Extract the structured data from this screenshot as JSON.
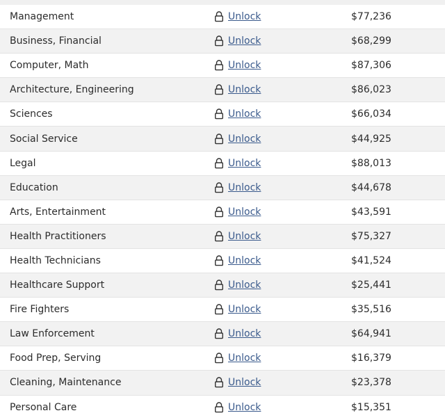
{
  "table": {
    "unlock_label": "Unlock",
    "rows": [
      {
        "occupation": "Management",
        "unlock": "Unlock",
        "salary": "$77,236"
      },
      {
        "occupation": "Business, Financial",
        "unlock": "Unlock",
        "salary": "$68,299"
      },
      {
        "occupation": "Computer, Math",
        "unlock": "Unlock",
        "salary": "$87,306"
      },
      {
        "occupation": "Architecture, Engineering",
        "unlock": "Unlock",
        "salary": "$86,023"
      },
      {
        "occupation": "Sciences",
        "unlock": "Unlock",
        "salary": "$66,034"
      },
      {
        "occupation": "Social Service",
        "unlock": "Unlock",
        "salary": "$44,925"
      },
      {
        "occupation": "Legal",
        "unlock": "Unlock",
        "salary": "$88,013"
      },
      {
        "occupation": "Education",
        "unlock": "Unlock",
        "salary": "$44,678"
      },
      {
        "occupation": "Arts, Entertainment",
        "unlock": "Unlock",
        "salary": "$43,591"
      },
      {
        "occupation": "Health Practitioners",
        "unlock": "Unlock",
        "salary": "$75,327"
      },
      {
        "occupation": "Health Technicians",
        "unlock": "Unlock",
        "salary": "$41,524"
      },
      {
        "occupation": "Healthcare Support",
        "unlock": "Unlock",
        "salary": "$25,441"
      },
      {
        "occupation": "Fire Fighters",
        "unlock": "Unlock",
        "salary": "$35,516"
      },
      {
        "occupation": "Law Enforcement",
        "unlock": "Unlock",
        "salary": "$64,941"
      },
      {
        "occupation": "Food Prep, Serving",
        "unlock": "Unlock",
        "salary": "$16,379"
      },
      {
        "occupation": "Cleaning, Maintenance",
        "unlock": "Unlock",
        "salary": "$23,378"
      },
      {
        "occupation": "Personal Care",
        "unlock": "Unlock",
        "salary": "$15,351"
      }
    ]
  },
  "colors": {
    "link": "#3a5a8c",
    "row_alt_bg": "#f2f2f2",
    "divider": "#e3e3e3"
  },
  "icons": {
    "lock": "lock-icon"
  }
}
